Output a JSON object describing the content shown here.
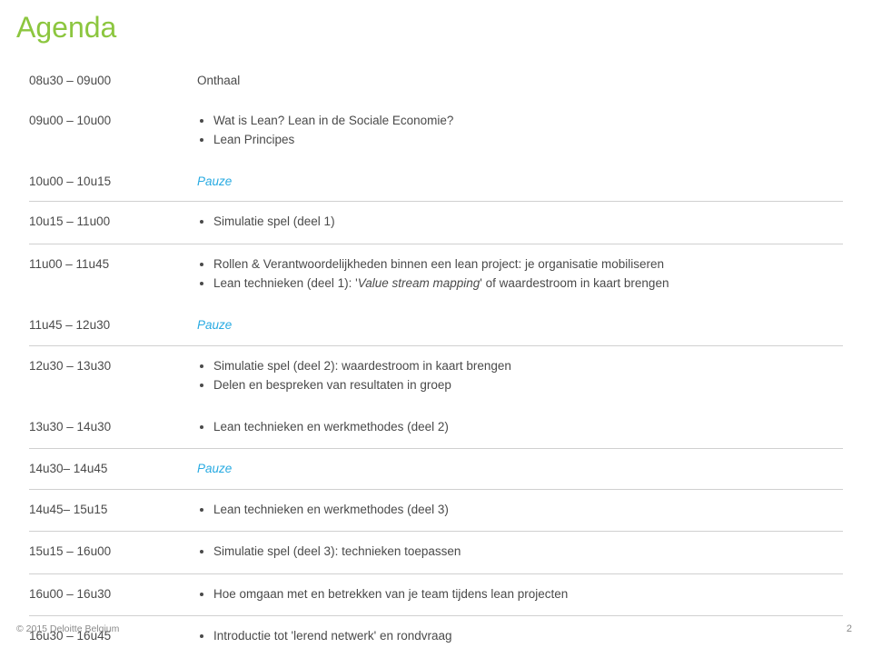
{
  "title": "Agenda",
  "colors": {
    "title": "#8cc63f",
    "pause": "#29abe2",
    "text": "#4a4a4a",
    "separator": "#d0d0d0",
    "footer": "#8a8a8a",
    "background": "#ffffff"
  },
  "rows": {
    "r1": {
      "time": "08u30 – 09u00",
      "plain": "Onthaal"
    },
    "r2": {
      "time": "09u00 – 10u00",
      "b1": "Wat is Lean? Lean in de Sociale Economie?",
      "b2": "Lean Principes"
    },
    "r3": {
      "time": "10u00 – 10u15",
      "pause": "Pauze"
    },
    "r4": {
      "time": "10u15 – 11u00",
      "b1": "Simulatie spel (deel 1)"
    },
    "r5": {
      "time": "11u00 – 11u45",
      "b1": "Rollen & Verantwoordelijkheden binnen een lean project: je organisatie mobiliseren",
      "b2_pre": "Lean technieken (deel 1): '",
      "b2_it": "Value stream mapping",
      "b2_post": "' of waardestroom in kaart brengen"
    },
    "r6": {
      "time": "11u45 – 12u30",
      "pause": "Pauze"
    },
    "r7": {
      "time": "12u30 – 13u30",
      "b1": "Simulatie spel (deel 2): waardestroom in kaart brengen",
      "b2": "Delen en bespreken van resultaten in groep"
    },
    "r8": {
      "time": "13u30 – 14u30",
      "b1": "Lean technieken en werkmethodes (deel 2)"
    },
    "r9": {
      "time": "14u30– 14u45",
      "pause": "Pauze"
    },
    "r10": {
      "time": "14u45– 15u15",
      "b1": "Lean technieken en werkmethodes (deel 3)"
    },
    "r11": {
      "time": "15u15 – 16u00",
      "b1": "Simulatie spel (deel 3): technieken toepassen"
    },
    "r12": {
      "time": "16u00 – 16u30",
      "b1": "Hoe omgaan met en betrekken van je team tijdens lean projecten"
    },
    "r13": {
      "time": "16u30 – 16u45",
      "b1": "Introductie tot 'lerend netwerk' en rondvraag"
    }
  },
  "footer": "© 2015 Deloitte Belgium",
  "pageNumber": "2"
}
